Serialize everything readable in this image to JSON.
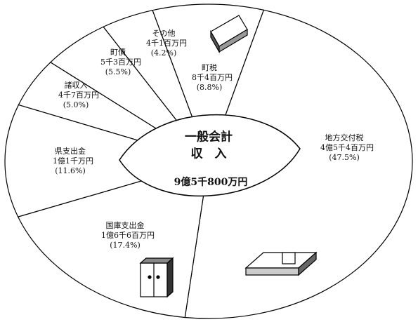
{
  "chart_data": {
    "type": "pie",
    "center_title": "一般会計",
    "center_subtitle": "収　入",
    "total": "9億5千800万円",
    "categories": [
      "町税",
      "地方交付税",
      "国庫支出金",
      "県支出金",
      "諸収入",
      "町債",
      "その他"
    ],
    "amount_labels": [
      "8千4百万円",
      "4億5千4百万円",
      "1億6千6百万円",
      "1億1千万円",
      "4千7百万円",
      "5千3百万円",
      "4千1百万円"
    ],
    "values": [
      8.8,
      47.5,
      17.4,
      11.6,
      5.0,
      5.5,
      4.2
    ],
    "value_labels": [
      "(8.8%)",
      "(47.5%)",
      "(17.4%)",
      "(11.6%)",
      "(5.0%)",
      "(5.5%)",
      "(4.2%)"
    ]
  }
}
